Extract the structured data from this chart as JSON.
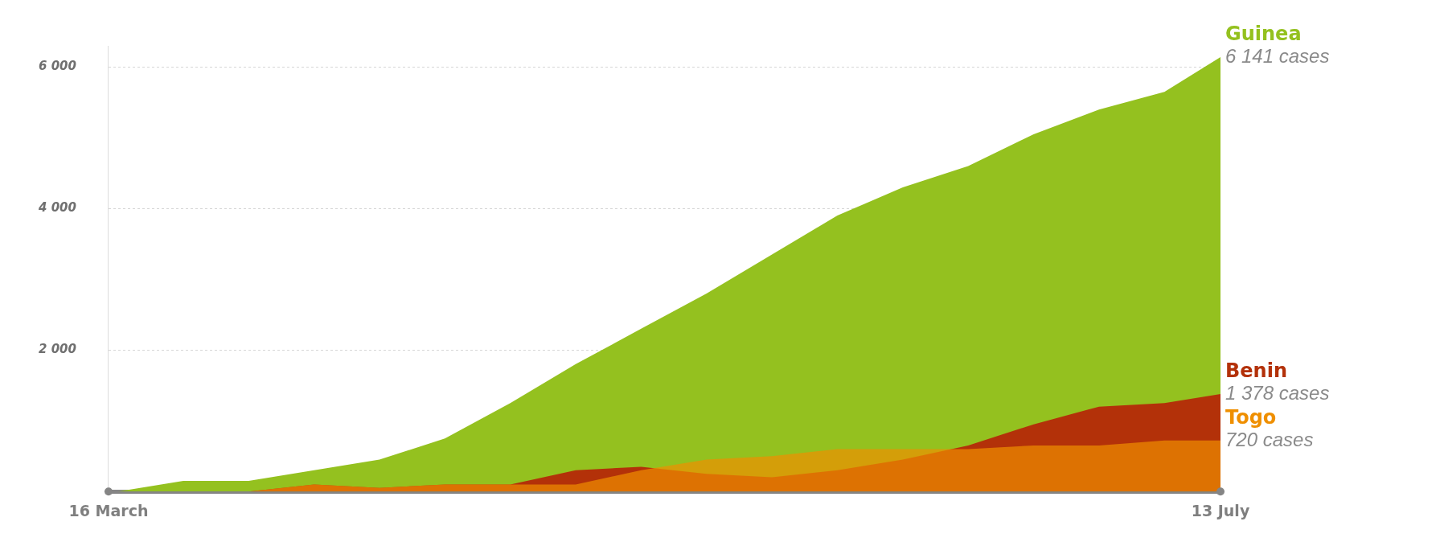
{
  "chart_data": {
    "type": "area",
    "x": [
      "--03-17",
      "--03-24",
      "--03-31",
      "--04-07",
      "--04-14",
      "--04-21",
      "--04-28",
      "--05-05",
      "--05-12",
      "--05-19",
      "--05-26",
      "--06-02",
      "--06-09",
      "--06-16",
      "--06-23",
      "--06-30",
      "--07-07",
      "--07-13"
    ],
    "series": [
      {
        "name": "Guinea",
        "color": "#94c11f",
        "values": [
          0,
          150,
          150,
          300,
          450,
          750,
          1250,
          1800,
          2300,
          2800,
          3350,
          3900,
          4300,
          4600,
          5050,
          5400,
          5650,
          6141
        ],
        "value_labels": [
          null,
          null,
          null,
          null,
          null,
          null,
          null,
          null,
          null,
          null,
          null,
          null,
          null,
          null,
          null,
          null,
          null,
          "6 141 cases"
        ]
      },
      {
        "name": "Benin",
        "color": "#b33109",
        "values": [
          0,
          0,
          0,
          100,
          50,
          100,
          100,
          300,
          350,
          250,
          200,
          300,
          450,
          650,
          950,
          1200,
          1250,
          1378
        ],
        "value_labels": [
          null,
          null,
          null,
          null,
          null,
          null,
          null,
          null,
          null,
          null,
          null,
          null,
          null,
          null,
          null,
          null,
          null,
          "1 378 cases"
        ]
      },
      {
        "name": "Togo",
        "color": "#ef8f00",
        "values": [
          0,
          0,
          0,
          100,
          50,
          100,
          100,
          100,
          300,
          450,
          500,
          600,
          600,
          600,
          650,
          650,
          720,
          720
        ],
        "value_labels": [
          null,
          null,
          null,
          null,
          null,
          null,
          null,
          null,
          null,
          null,
          null,
          null,
          null,
          null,
          null,
          null,
          null,
          "720 cases"
        ]
      }
    ],
    "xlim": [
      "--03-16",
      "--07-13"
    ],
    "xticks": [
      {
        "value": "--03-16",
        "label": "16 March"
      },
      {
        "value": "--07-13",
        "label": "13 July"
      }
    ],
    "yticks": [
      {
        "value": 2000,
        "label": "2 000"
      },
      {
        "value": 4000,
        "label": "4 000"
      },
      {
        "value": 6000,
        "label": "6 000"
      }
    ],
    "ylim": [
      0,
      6300
    ],
    "grid": "y",
    "legend": false
  }
}
